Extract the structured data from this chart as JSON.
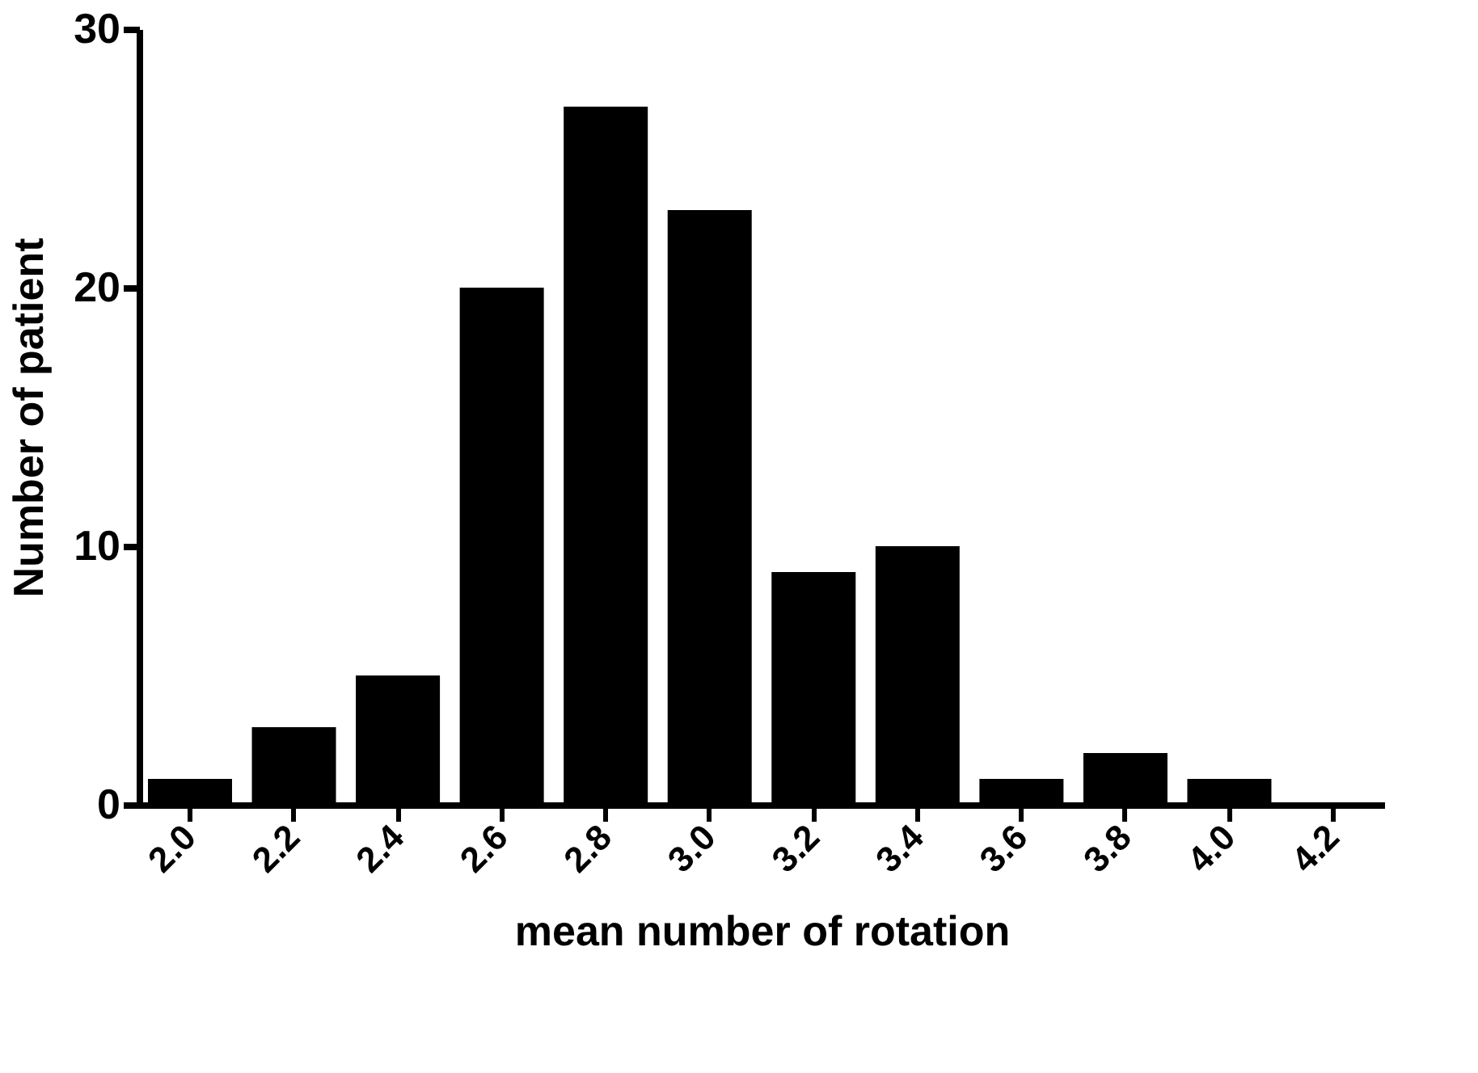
{
  "chart_data": {
    "type": "bar",
    "categories": [
      "2.0",
      "2.2",
      "2.4",
      "2.6",
      "2.8",
      "3.0",
      "3.2",
      "3.4",
      "3.6",
      "3.8",
      "4.0",
      "4.2"
    ],
    "values": [
      1,
      3,
      5,
      20,
      27,
      23,
      9,
      10,
      1,
      2,
      1,
      0
    ],
    "color": "#000000",
    "xlabel": "mean number of rotation",
    "ylabel": "Number of patient",
    "ylim": [
      0,
      30
    ],
    "yticks": [
      0,
      10,
      20,
      30
    ],
    "grid": false
  }
}
